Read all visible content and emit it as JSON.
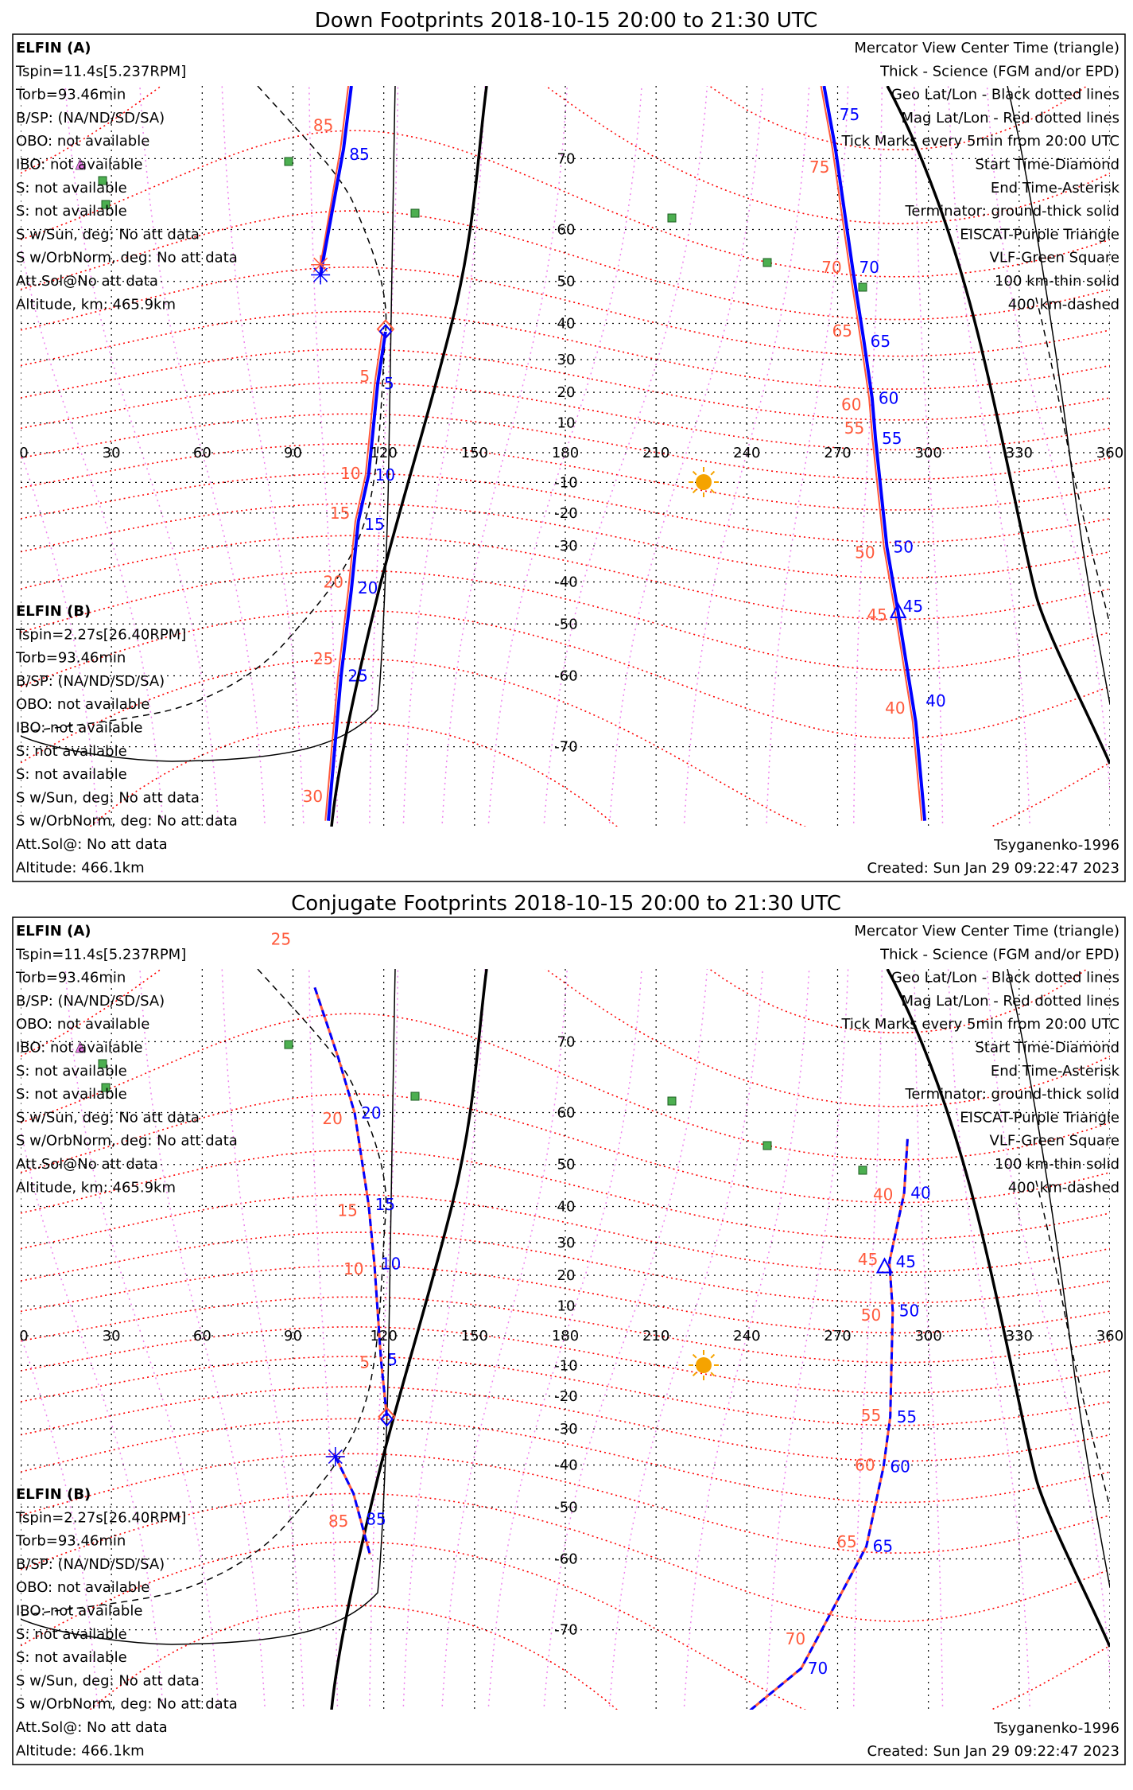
{
  "colors": {
    "a": "#0000ff",
    "b": "#ff5a3c",
    "mag": "#ff0000",
    "eiscat": "#ee82ee",
    "vlf": "#4caf50",
    "sun": "#f5a300"
  },
  "common": {
    "sat_a": {
      "name": "ELFIN (A)",
      "lines": [
        "Tspin=11.4s[5.237RPM]",
        "Torb=93.46min",
        "B/SP: (NA/ND/SD/SA)",
        "OBO: not available",
        "IBO: not available",
        "S: not available",
        "S: not available",
        "S w/Sun, deg: No att data",
        "S w/OrbNorm, deg: No att data",
        "Att.Sol@No att data",
        "Altitude, km: 465.9km"
      ]
    },
    "sat_b": {
      "name": "ELFIN (B)",
      "lines": [
        "Tspin=2.27s[26.40RPM]",
        "Torb=93.46min",
        "B/SP: (NA/ND/SD/SA)",
        "OBO: not available",
        "IBO: not available",
        "S: not available",
        "S: not available",
        "S w/Sun, deg: No att data",
        "S w/OrbNorm, deg: No att data",
        "Att.Sol@: No att data",
        "Altitude: 466.1km"
      ]
    },
    "legend": [
      {
        "text": "Mercator View Center Time (triangle)",
        "color": "#000000"
      },
      {
        "text": "Thick - Science (FGM and/or EPD)",
        "color": "#000000"
      },
      {
        "text": "Geo Lat/Lon - Black dotted lines",
        "color": "#000000"
      },
      {
        "text": "Mag Lat/Lon - Red dotted lines",
        "color": "#ff0000"
      },
      {
        "text": "Tick Marks every 5min from 20:00 UTC",
        "color": "#000000"
      },
      {
        "text": "Start Time-Diamond",
        "color": "#000000"
      },
      {
        "text": "End Time-Asterisk",
        "color": "#000000"
      },
      {
        "text": "Terminator: ground-thick solid",
        "color": "#000000"
      },
      {
        "text": "EISCAT-Purple Triangle",
        "color": "#ee82ee"
      },
      {
        "text": "VLF-Green Square",
        "color": "#4caf50"
      },
      {
        "text": "100 km-thin solid",
        "color": "#000000"
      },
      {
        "text": "400 km-dashed",
        "color": "#000000"
      }
    ],
    "model": "Tsyganenko-1996",
    "created": "Created: Sun Jan 29 09:22:47 2023",
    "lon_ticks": [
      "0",
      "30",
      "60",
      "90",
      "120",
      "150",
      "180",
      "210",
      "240",
      "270",
      "300",
      "330",
      "360"
    ],
    "lat_ticks": [
      "70",
      "60",
      "50",
      "40",
      "30",
      "20",
      "10",
      "-10",
      "-20",
      "-30",
      "-40",
      "-50",
      "-60",
      "-70"
    ]
  },
  "chart_data": [
    {
      "type": "scatter",
      "title": "Down Footprints 2018-10-15 20:00 to 21:30 UTC",
      "xlim": [
        0,
        360
      ],
      "ylim": [
        -78,
        77
      ],
      "traces": [
        {
          "name": "ELFIN (B)",
          "color": "#ff5a3c",
          "dashed": false,
          "width": 2,
          "segments": [
            [
              [
                119.5,
                37.8
              ],
              [
                117,
                22.8
              ],
              [
                114,
                -7.5
              ],
              [
                110.6,
                -22.6
              ],
              [
                108.3,
                -42
              ],
              [
                104.9,
                -60
              ],
              [
                100.7,
                -77
              ]
            ],
            [
              [
                297.8,
                -77
              ],
              [
                294.8,
                -66.9
              ],
              [
                289,
                -47.4
              ],
              [
                285.3,
                -30.4
              ],
              [
                281.5,
                4.8
              ],
              [
                280.4,
                18.1
              ],
              [
                277.7,
                35.2
              ],
              [
                274,
                52.6
              ],
              [
                268.3,
                71.1
              ],
              [
                264.5,
                76.9
              ]
            ],
            [
              [
                108.3,
                76.9
              ],
              [
                105.7,
                71.1
              ],
              [
                99.1,
                53.5
              ]
            ]
          ],
          "ticks": [
            {
              "label": "85",
              "at": [
                106,
                73.5
              ]
            },
            {
              "label": "75",
              "at": [
                270,
                69
              ]
            },
            {
              "label": "70",
              "at": [
                274,
                53
              ]
            },
            {
              "label": "65",
              "at": [
                277.5,
                38
              ]
            },
            {
              "label": "60",
              "at": [
                280.5,
                16
              ]
            },
            {
              "label": "55",
              "at": [
                281.5,
                3
              ]
            },
            {
              "label": "50",
              "at": [
                285,
                -32
              ]
            },
            {
              "label": "45",
              "at": [
                289,
                -48
              ]
            },
            {
              "label": "40",
              "at": [
                295,
                -65
              ]
            },
            {
              "label": "5",
              "at": [
                118,
                25
              ]
            },
            {
              "label": "10",
              "at": [
                115,
                -7
              ]
            },
            {
              "label": "15",
              "at": [
                111.5,
                -20
              ]
            },
            {
              "label": "20",
              "at": [
                109.3,
                -40
              ]
            },
            {
              "label": "25",
              "at": [
                106,
                -57
              ]
            },
            {
              "label": "30",
              "at": [
                102.5,
                -75
              ]
            }
          ]
        },
        {
          "name": "ELFIN (A)",
          "color": "#0000ff",
          "dashed": false,
          "width": 4,
          "segments": [
            [
              [
                120.6,
                37.8
              ],
              [
                118,
                22.8
              ],
              [
                115,
                -7.5
              ],
              [
                111.6,
                -22.6
              ],
              [
                109.3,
                -42
              ],
              [
                105.9,
                -60
              ],
              [
                101.7,
                -77
              ]
            ],
            [
              [
                298.8,
                -77
              ],
              [
                295.8,
                -66.9
              ],
              [
                290,
                -47.4
              ],
              [
                286.3,
                -30.4
              ],
              [
                282.5,
                4.8
              ],
              [
                281.4,
                18.1
              ],
              [
                278.7,
                35.2
              ],
              [
                275,
                52.6
              ],
              [
                269.3,
                71.1
              ],
              [
                265.5,
                76.9
              ]
            ],
            [
              [
                109.3,
                76.9
              ],
              [
                106.7,
                71.1
              ],
              [
                99.1,
                51.4
              ]
            ]
          ],
          "ticks": [
            {
              "label": "85",
              "at": [
                106.5,
                70.5
              ]
            },
            {
              "label": "75",
              "at": [
                268.5,
                73
              ]
            },
            {
              "label": "70",
              "at": [
                275,
                53
              ]
            },
            {
              "label": "65",
              "at": [
                278.7,
                35.2
              ]
            },
            {
              "label": "60",
              "at": [
                281.4,
                18.1
              ]
            },
            {
              "label": "55",
              "at": [
                282.5,
                4.8
              ]
            },
            {
              "label": "50",
              "at": [
                286.3,
                -30.4
              ]
            },
            {
              "label": "45",
              "at": [
                289.5,
                -46
              ]
            },
            {
              "label": "40",
              "at": [
                297,
                -64
              ]
            },
            {
              "label": "5",
              "at": [
                118,
                22.8
              ]
            },
            {
              "label": "10",
              "at": [
                115,
                -7.5
              ]
            },
            {
              "label": "15",
              "at": [
                111.5,
                -23.5
              ]
            },
            {
              "label": "20",
              "at": [
                109.3,
                -41.5
              ]
            },
            {
              "label": "25",
              "at": [
                106,
                -60
              ]
            }
          ]
        }
      ],
      "start": [
        120.6,
        38.5
      ],
      "center": [
        290,
        -47.5
      ],
      "end_a": [
        99.1,
        51.4
      ],
      "end_b": [
        99.1,
        53.5
      ]
    },
    {
      "type": "scatter",
      "title": "Conjugate Footprints 2018-10-15 20:00 to 21:30 UTC",
      "xlim": [
        0,
        360
      ],
      "ylim": [
        -78,
        77
      ],
      "traces": [
        {
          "name": "ELFIN (B)",
          "color": "#ff5a3c",
          "dashed": false,
          "width": 3,
          "segments": [
            [
              [
                97.2,
                75.4
              ],
              [
                105,
                68
              ],
              [
                110.4,
                59.9
              ],
              [
                115,
                40.5
              ],
              [
                116.9,
                23.6
              ],
              [
                119.1,
                -8.1
              ],
              [
                121,
                -26.4
              ]
            ],
            [
              [
                104,
                -37.8
              ],
              [
                110,
                -47
              ],
              [
                115.4,
                -59.2
              ]
            ],
            [
              [
                293.1,
                55.2
              ],
              [
                292,
                43.4
              ],
              [
                287.1,
                24.2
              ],
              [
                288.2,
                8.4
              ],
              [
                287.4,
                -26.4
              ],
              [
                285.2,
                -40.4
              ],
              [
                279.5,
                -57.8
              ],
              [
                258,
                -74
              ],
              [
                241,
                -77.5
              ]
            ]
          ],
          "ticks": [
            {
              "label": "25",
              "at": [
                92,
                79
              ]
            },
            {
              "label": "20",
              "at": [
                109,
                59
              ]
            },
            {
              "label": "15",
              "at": [
                114,
                39
              ]
            },
            {
              "label": "10",
              "at": [
                116,
                22
              ]
            },
            {
              "label": "5",
              "at": [
                118,
                -9
              ]
            },
            {
              "label": "85",
              "at": [
                111,
                -53
              ]
            },
            {
              "label": "40",
              "at": [
                291,
                43
              ]
            },
            {
              "label": "45",
              "at": [
                286,
                25
              ]
            },
            {
              "label": "50",
              "at": [
                287,
                7
              ]
            },
            {
              "label": "55",
              "at": [
                287,
                -26
              ]
            },
            {
              "label": "60",
              "at": [
                285,
                -40
              ]
            },
            {
              "label": "65",
              "at": [
                279,
                -57
              ]
            },
            {
              "label": "70",
              "at": [
                262,
                -71
              ]
            }
          ]
        },
        {
          "name": "ELFIN (A)",
          "color": "#0000ff",
          "dashed": true,
          "width": 3,
          "segments": [
            [
              [
                97.2,
                75.4
              ],
              [
                105,
                68
              ],
              [
                110.4,
                59.9
              ],
              [
                115,
                40.5
              ],
              [
                116.9,
                23.6
              ],
              [
                119.1,
                -8.1
              ],
              [
                121,
                -26.4
              ]
            ],
            [
              [
                104,
                -37.8
              ],
              [
                110,
                -47
              ],
              [
                115.4,
                -59.2
              ]
            ],
            [
              [
                293.1,
                55.2
              ],
              [
                292,
                43.4
              ],
              [
                287.1,
                24.2
              ],
              [
                288.2,
                8.4
              ],
              [
                287.4,
                -26.4
              ],
              [
                285.2,
                -40.4
              ],
              [
                279.5,
                -57.8
              ],
              [
                258,
                -74
              ],
              [
                241,
                -77.5
              ]
            ]
          ],
          "ticks": [
            {
              "label": "20",
              "at": [
                110.4,
                59.9
              ]
            },
            {
              "label": "15",
              "at": [
                115,
                40.5
              ]
            },
            {
              "label": "10",
              "at": [
                116.9,
                23.6
              ]
            },
            {
              "label": "5",
              "at": [
                119.1,
                -8.1
              ]
            },
            {
              "label": "85",
              "at": [
                112,
                -52.6
              ]
            },
            {
              "label": "40",
              "at": [
                292,
                43.4
              ]
            },
            {
              "label": "45",
              "at": [
                287.1,
                24.2
              ]
            },
            {
              "label": "50",
              "at": [
                288.2,
                8.4
              ]
            },
            {
              "label": "55",
              "at": [
                287.4,
                -26.4
              ]
            },
            {
              "label": "60",
              "at": [
                285.2,
                -40.4
              ]
            },
            {
              "label": "65",
              "at": [
                279.5,
                -57.8
              ]
            },
            {
              "label": "70",
              "at": [
                258,
                -74
              ]
            }
          ]
        }
      ],
      "start": [
        121,
        -26.4
      ],
      "center": [
        285.5,
        22.4
      ],
      "end_a": [
        104,
        -37.8
      ],
      "end_b": [
        104,
        -37.8
      ]
    }
  ]
}
